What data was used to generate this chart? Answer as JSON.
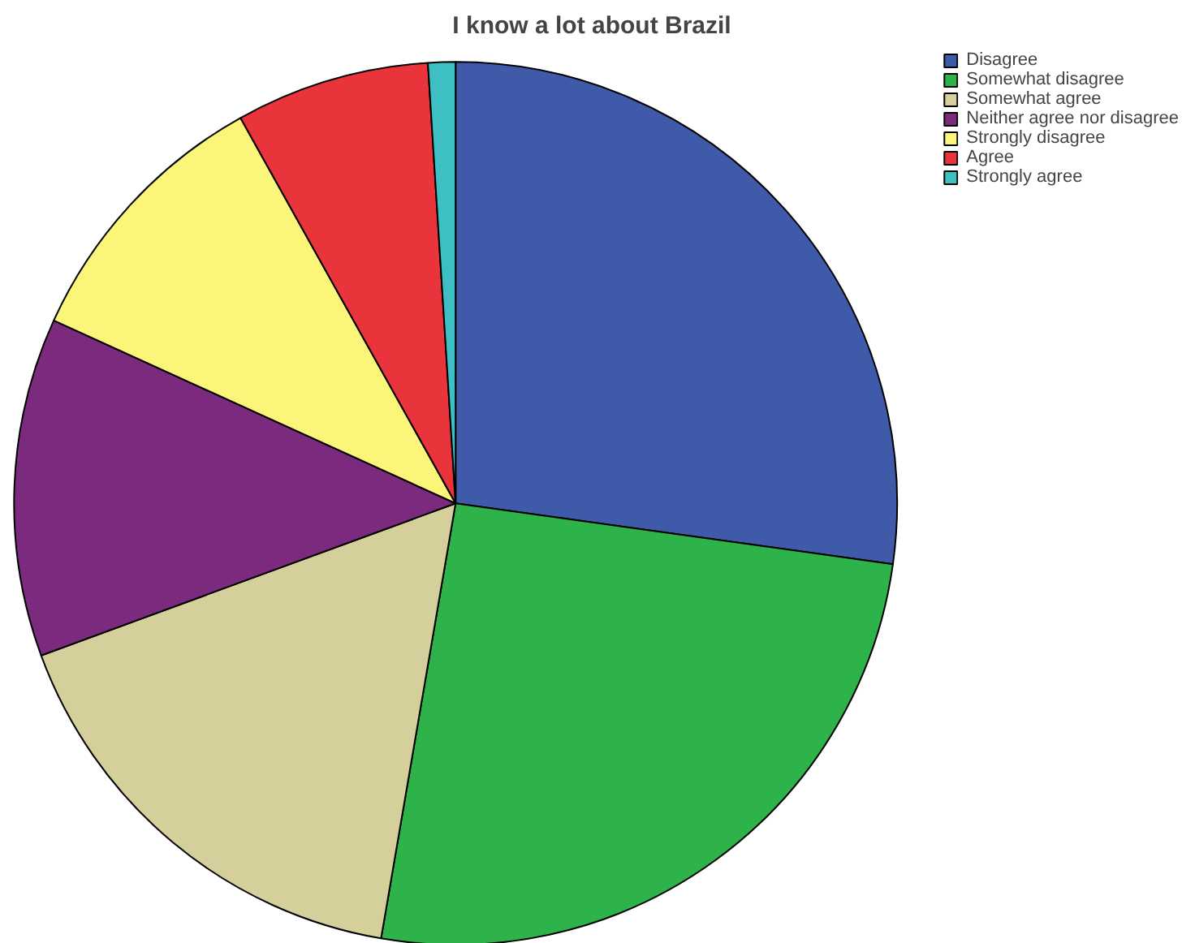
{
  "chart_data": {
    "type": "pie",
    "title": "I know a lot about Brazil",
    "categories": [
      "Disagree",
      "Somewhat disagree",
      "Somewhat agree",
      "Neither agree nor disagree",
      "Strongly disagree",
      "Agree",
      "Strongly agree"
    ],
    "values": [
      27.2,
      25.5,
      16.7,
      12.4,
      10.1,
      7.1,
      1.0
    ],
    "colors": [
      "#3f5aa8",
      "#2db34a",
      "#d4cf9b",
      "#7b2a7e",
      "#fbf67a",
      "#e8343a",
      "#3ebfc4"
    ],
    "legend": "top right"
  }
}
